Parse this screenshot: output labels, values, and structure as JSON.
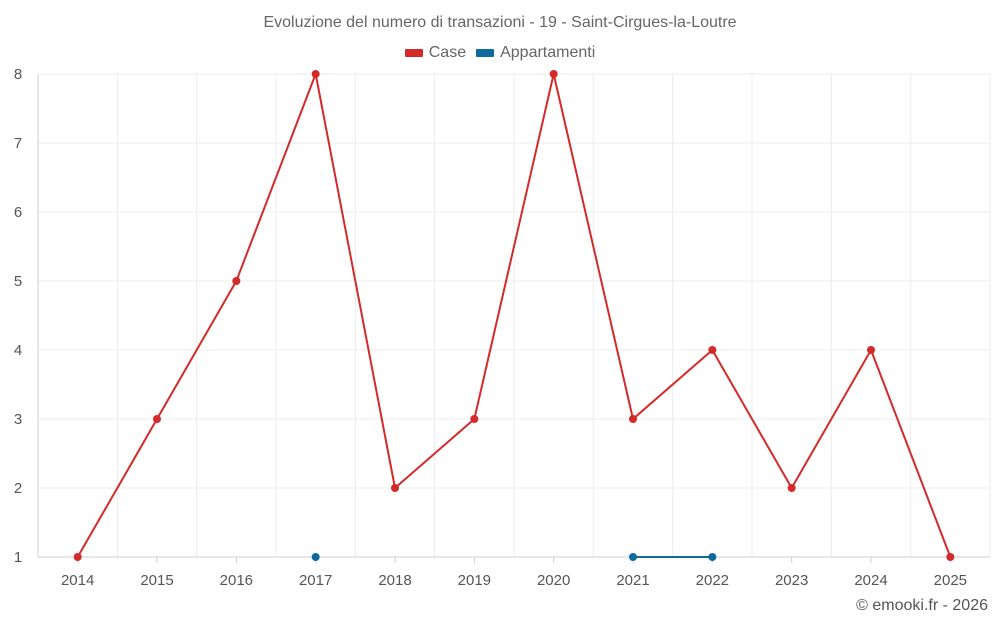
{
  "chart_data": {
    "type": "line",
    "title": "Evoluzione del numero di transazioni - 19 - Saint-Cirgues-la-Loutre",
    "categories": [
      "2014",
      "2015",
      "2016",
      "2017",
      "2018",
      "2019",
      "2020",
      "2021",
      "2022",
      "2023",
      "2024",
      "2025"
    ],
    "series": [
      {
        "name": "Case",
        "color": "#d42a2a",
        "values": [
          1,
          3,
          5,
          8,
          2,
          3,
          8,
          3,
          4,
          2,
          4,
          1
        ]
      },
      {
        "name": "Appartamenti",
        "color": "#0f6b9e",
        "values": [
          null,
          null,
          null,
          1,
          null,
          null,
          null,
          1,
          1,
          null,
          null,
          null
        ]
      }
    ],
    "ylim": [
      1,
      8
    ],
    "yticks": [
      1,
      2,
      3,
      4,
      5,
      6,
      7,
      8
    ],
    "grid": true,
    "legend": "top-center",
    "xlabel": "",
    "ylabel": ""
  },
  "credit": "© emooki.fr - 2026"
}
